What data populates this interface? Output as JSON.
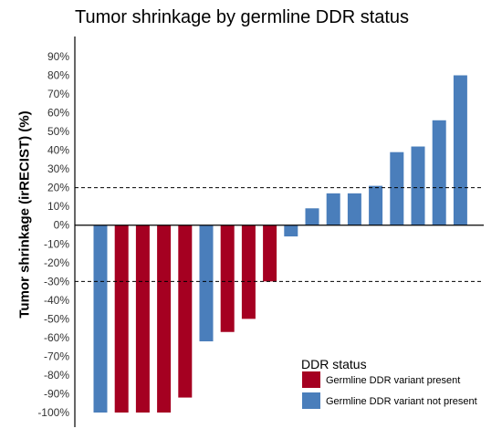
{
  "chart_data": {
    "type": "bar",
    "title": "Tumor shrinkage by germline DDR status",
    "xlabel": "",
    "ylabel": "Tumor shrinkage (irRECIST) (%)",
    "ylim": [
      -100,
      90
    ],
    "y_ticks": [
      "90%",
      "80%",
      "70%",
      "60%",
      "50%",
      "40%",
      "30%",
      "20%",
      "10%",
      "0%",
      "-10%",
      "-20%",
      "-30%",
      "-40%",
      "-50%",
      "-60%",
      "-70%",
      "-80%",
      "-90%",
      "-100%"
    ],
    "y_tick_values": [
      90,
      80,
      70,
      60,
      50,
      40,
      30,
      20,
      10,
      0,
      -10,
      -20,
      -30,
      -40,
      -50,
      -60,
      -70,
      -80,
      -90,
      -100
    ],
    "reference_lines": [
      20,
      -30
    ],
    "grid": false,
    "legend": {
      "title": "DDR status",
      "placement": "bottom-right",
      "entries": [
        {
          "name": "Germline DDR variant present",
          "color": "#A50021"
        },
        {
          "name": "Germline DDR variant not present",
          "color": "#4A7EBB"
        }
      ]
    },
    "values": [
      -100,
      -100,
      -100,
      -100,
      -92,
      -62,
      -57,
      -50,
      -30,
      -6,
      9,
      17,
      17,
      21,
      39,
      42,
      56,
      80
    ],
    "groups": [
      1,
      0,
      0,
      0,
      0,
      1,
      0,
      0,
      0,
      1,
      1,
      1,
      1,
      1,
      1,
      1,
      1,
      1
    ],
    "colors": {
      "present": "#A50021",
      "not_present": "#4A7EBB"
    }
  }
}
